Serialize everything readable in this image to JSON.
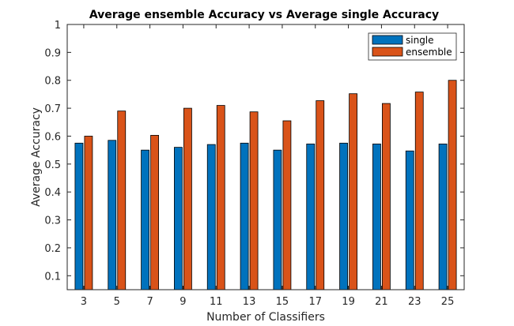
{
  "chart_data": {
    "type": "bar",
    "title": "Average ensemble Accuracy vs Average single Accuracy",
    "xlabel": "Number of Classifiers",
    "ylabel": "Average Accuracy",
    "categories": [
      "3",
      "5",
      "7",
      "9",
      "11",
      "13",
      "15",
      "17",
      "19",
      "21",
      "23",
      "25"
    ],
    "series": [
      {
        "name": "single",
        "color": "#0072BD",
        "values": [
          0.575,
          0.585,
          0.55,
          0.56,
          0.57,
          0.575,
          0.55,
          0.572,
          0.575,
          0.572,
          0.547,
          0.572
        ]
      },
      {
        "name": "ensemble",
        "color": "#D95319",
        "values": [
          0.6,
          0.69,
          0.603,
          0.7,
          0.71,
          0.687,
          0.655,
          0.727,
          0.752,
          0.717,
          0.758,
          0.8
        ]
      }
    ],
    "ylim": [
      0.05,
      1
    ],
    "yticks": [
      "0.1",
      "0.2",
      "0.3",
      "0.4",
      "0.5",
      "0.6",
      "0.7",
      "0.8",
      "0.9",
      "1"
    ],
    "legend_position": "top-right",
    "grid": false
  }
}
